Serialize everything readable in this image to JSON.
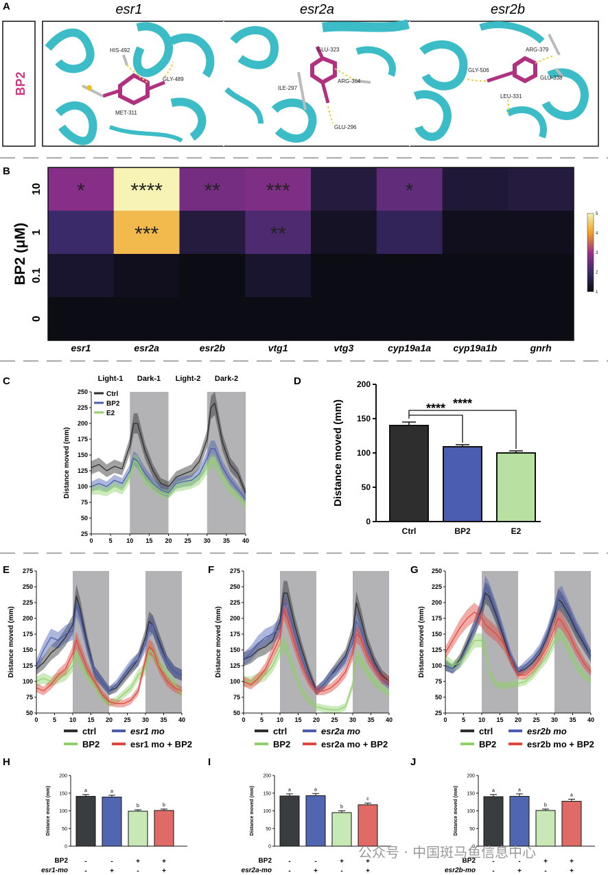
{
  "panels": {
    "A": {
      "letter": "A",
      "row_label": "BP2",
      "genes": [
        "esr1",
        "esr2a",
        "esr2b"
      ],
      "residues": [
        [
          "HIS-492",
          "GLY-489",
          "MET-311"
        ],
        [
          "GLU-323",
          "ILE-297",
          "ARG-364",
          "GLU-296"
        ],
        [
          "ARG-379",
          "GLY-506",
          "GLU-338",
          "LEU-331"
        ]
      ]
    },
    "B": {
      "letter": "B"
    },
    "C": {
      "letter": "C",
      "phases": [
        "Light-1",
        "Dark-1",
        "Light-2",
        "Dark-2"
      ],
      "legend": [
        "Ctrl",
        "BP2",
        "E2"
      ]
    },
    "D": {
      "letter": "D",
      "sig": [
        "****",
        "****"
      ]
    },
    "E": {
      "letter": "E",
      "legend": [
        "ctrl",
        "esr1 mo",
        "BP2",
        "esr1 mo + BP2"
      ]
    },
    "F": {
      "letter": "F",
      "legend": [
        "ctrl",
        "esr2a mo",
        "BP2",
        "esr2a mo + BP2"
      ]
    },
    "G": {
      "letter": "G",
      "legend": [
        "ctrl",
        "esr2b mo",
        "BP2",
        "esr2b mo + BP2"
      ]
    },
    "H": {
      "letter": "H",
      "row1": "BP2",
      "row2": "esr1-mo",
      "bp2_signs": [
        "-",
        "-",
        "+",
        "+"
      ],
      "mo_signs": [
        "-",
        "+",
        "-",
        "+"
      ],
      "letters": [
        "a",
        "a",
        "b",
        "b"
      ]
    },
    "I": {
      "letter": "I",
      "row1": "BP2",
      "row2": "esr2a-mo",
      "bp2_signs": [
        "-",
        "-",
        "+",
        "+"
      ],
      "mo_signs": [
        "-",
        "+",
        "-",
        "+"
      ],
      "letters": [
        "a",
        "a",
        "b",
        "c"
      ]
    },
    "J": {
      "letter": "J",
      "row1": "BP2",
      "row2": "esr2b-mo",
      "bp2_signs": [
        "-",
        "-",
        "+",
        "+"
      ],
      "mo_signs": [
        "-",
        "+",
        "-",
        "+"
      ],
      "letters": [
        "a",
        "a",
        "b",
        "a"
      ]
    }
  },
  "watermark": "公众号 · 中国斑马鱼信息中心",
  "colors": {
    "ctrl": "#2e2e2e",
    "bp2": "#4a5db0",
    "e2": "#8fd06a",
    "combo": "#e0473c",
    "magenta": "#d63384",
    "teal": "#3bbcc6",
    "dark_band": "#b3b3b6"
  },
  "chart_data": [
    {
      "id": "B",
      "type": "heatmap",
      "ylabel": "BP2 (μM)",
      "rows": [
        "10",
        "1",
        "0.1",
        "0"
      ],
      "columns": [
        "esr1",
        "esr2a",
        "esr2b",
        "vtg1",
        "vtg3",
        "cyp19a1a",
        "cyp19a1b",
        "gnrh"
      ],
      "values": [
        [
          2.8,
          5.0,
          2.6,
          2.7,
          1.5,
          2.4,
          1.4,
          1.5
        ],
        [
          2.0,
          4.3,
          1.5,
          2.2,
          1.2,
          1.8,
          1.1,
          1.1
        ],
        [
          1.3,
          1.1,
          1.0,
          1.3,
          1.0,
          1.0,
          1.0,
          1.0
        ],
        [
          1.0,
          1.0,
          1.0,
          1.0,
          1.0,
          1.0,
          1.0,
          1.0
        ]
      ],
      "significance": [
        [
          "*",
          "****",
          "**",
          "***",
          "",
          "*",
          "",
          ""
        ],
        [
          "",
          "***",
          "",
          "**",
          "",
          "",
          "",
          ""
        ],
        [
          "",
          "",
          "",
          "",
          "",
          "",
          "",
          ""
        ],
        [
          "",
          "",
          "",
          "",
          "",
          "",
          "",
          ""
        ]
      ],
      "colorbar_ticks": [
        "1",
        "2",
        "3",
        "4",
        "5"
      ],
      "range": [
        1,
        5
      ]
    },
    {
      "id": "C",
      "type": "line",
      "ylabel": "Distance moved (mm)",
      "xticks": [
        "0",
        "5",
        "10",
        "15",
        "20",
        "25",
        "30",
        "35",
        "40"
      ],
      "yticks": [
        "25",
        "50",
        "75",
        "100",
        "125",
        "150",
        "175",
        "200",
        "225",
        "250"
      ],
      "xlim": [
        0,
        40
      ],
      "ylim": [
        25,
        250
      ],
      "dark_periods": [
        [
          10,
          20
        ],
        [
          30,
          40
        ]
      ],
      "x": [
        0,
        2,
        4,
        6,
        8,
        10,
        11,
        12,
        14,
        16,
        18,
        20,
        22,
        24,
        26,
        28,
        30,
        31,
        32,
        34,
        36,
        38,
        40
      ],
      "series": [
        {
          "name": "Ctrl",
          "color": "#2e2e2e",
          "values": [
            130,
            135,
            125,
            132,
            128,
            165,
            200,
            200,
            155,
            125,
            105,
            100,
            115,
            120,
            125,
            140,
            175,
            225,
            232,
            170,
            135,
            120,
            90
          ]
        },
        {
          "name": "BP2",
          "color": "#4a5db0",
          "values": [
            100,
            105,
            100,
            110,
            105,
            125,
            145,
            140,
            120,
            105,
            95,
            90,
            105,
            108,
            110,
            120,
            145,
            160,
            160,
            130,
            110,
            95,
            80
          ]
        },
        {
          "name": "E2",
          "color": "#8fd06a",
          "values": [
            95,
            95,
            92,
            100,
            95,
            115,
            140,
            138,
            110,
            100,
            90,
            88,
            100,
            102,
            105,
            112,
            130,
            140,
            140,
            115,
            95,
            85,
            70
          ]
        }
      ]
    },
    {
      "id": "D",
      "type": "bar",
      "ylabel": "Distance moved (mm)",
      "categories": [
        "Ctrl",
        "BP2",
        "E2"
      ],
      "values": [
        140,
        109,
        100
      ],
      "errors": [
        5,
        3,
        3
      ],
      "colors": [
        "#2e2e2e",
        "#4a5db0",
        "#b8e0a0"
      ],
      "yticks": [
        "0",
        "50",
        "100",
        "150",
        "200"
      ],
      "ylim": [
        0,
        200
      ]
    },
    {
      "id": "E",
      "type": "line",
      "ylabel": "Distance moved (mm)",
      "xticks": [
        "0",
        "5",
        "10",
        "15",
        "20",
        "25",
        "30",
        "35",
        "40"
      ],
      "yticks": [
        "50",
        "75",
        "100",
        "125",
        "150",
        "175",
        "200",
        "225",
        "250",
        "275"
      ],
      "xlim": [
        0,
        40
      ],
      "ylim": [
        50,
        275
      ],
      "dark_periods": [
        [
          10,
          20
        ],
        [
          30,
          40
        ]
      ],
      "x": [
        0,
        2,
        4,
        6,
        8,
        10,
        11,
        12,
        14,
        16,
        18,
        20,
        22,
        24,
        26,
        28,
        30,
        31,
        32,
        34,
        36,
        38,
        40
      ],
      "series": [
        {
          "name": "ctrl",
          "color": "#2e2e2e",
          "values": [
            120,
            130,
            145,
            155,
            170,
            190,
            235,
            215,
            160,
            115,
            100,
            85,
            90,
            105,
            120,
            135,
            170,
            195,
            190,
            160,
            130,
            115,
            110
          ]
        },
        {
          "name": "esr1 mo",
          "color": "#4a5db0",
          "values": [
            125,
            150,
            170,
            165,
            175,
            180,
            220,
            205,
            155,
            115,
            100,
            85,
            95,
            110,
            125,
            135,
            160,
            185,
            190,
            155,
            130,
            115,
            110
          ]
        },
        {
          "name": "BP2",
          "color": "#8fd06a",
          "values": [
            100,
            105,
            100,
            105,
            110,
            125,
            145,
            130,
            110,
            95,
            75,
            65,
            70,
            80,
            90,
            110,
            120,
            150,
            145,
            125,
            110,
            95,
            80
          ]
        },
        {
          "name": "esr1 mo + BP2",
          "color": "#e0473c",
          "values": [
            90,
            85,
            95,
            110,
            120,
            145,
            165,
            150,
            120,
            100,
            80,
            68,
            65,
            65,
            70,
            85,
            135,
            155,
            150,
            120,
            100,
            90,
            85
          ]
        }
      ]
    },
    {
      "id": "F",
      "type": "line",
      "ylabel": "Distance moved (mm)",
      "xticks": [
        "0",
        "5",
        "10",
        "15",
        "20",
        "25",
        "30",
        "35",
        "40"
      ],
      "yticks": [
        "50",
        "75",
        "100",
        "125",
        "150",
        "175",
        "200",
        "225",
        "250",
        "275"
      ],
      "xlim": [
        0,
        40
      ],
      "ylim": [
        50,
        275
      ],
      "dark_periods": [
        [
          10,
          20
        ],
        [
          30,
          40
        ]
      ],
      "x": [
        0,
        2,
        4,
        6,
        8,
        10,
        11,
        12,
        14,
        16,
        18,
        20,
        22,
        24,
        26,
        28,
        30,
        31,
        32,
        34,
        36,
        38,
        40
      ],
      "series": [
        {
          "name": "ctrl",
          "color": "#2e2e2e",
          "values": [
            135,
            140,
            150,
            155,
            165,
            195,
            240,
            240,
            190,
            150,
            115,
            85,
            95,
            110,
            125,
            140,
            175,
            225,
            205,
            160,
            130,
            110,
            100
          ]
        },
        {
          "name": "esr2a mo",
          "color": "#4a5db0",
          "values": [
            135,
            145,
            160,
            170,
            175,
            185,
            225,
            215,
            175,
            135,
            105,
            85,
            95,
            110,
            120,
            135,
            160,
            195,
            185,
            150,
            125,
            105,
            95
          ]
        },
        {
          "name": "BP2",
          "color": "#8fd06a",
          "values": [
            100,
            100,
            105,
            110,
            125,
            150,
            160,
            150,
            115,
            85,
            70,
            60,
            57,
            55,
            55,
            60,
            95,
            140,
            135,
            115,
            100,
            90,
            80
          ]
        },
        {
          "name": "esr2a mo + BP2",
          "color": "#e0473c",
          "values": [
            100,
            95,
            105,
            120,
            145,
            170,
            215,
            200,
            160,
            125,
            100,
            85,
            85,
            90,
            100,
            115,
            145,
            175,
            170,
            140,
            120,
            105,
            100
          ]
        }
      ]
    },
    {
      "id": "G",
      "type": "line",
      "ylabel": "Distance moved (mm)",
      "xticks": [
        "0",
        "5",
        "10",
        "15",
        "20",
        "25",
        "30",
        "35",
        "40"
      ],
      "yticks": [
        "25",
        "50",
        "75",
        "100",
        "125",
        "150",
        "175",
        "200",
        "225",
        "250"
      ],
      "xlim": [
        0,
        40
      ],
      "ylim": [
        25,
        250
      ],
      "dark_periods": [
        [
          10,
          20
        ],
        [
          30,
          40
        ]
      ],
      "x": [
        0,
        2,
        4,
        6,
        8,
        10,
        11,
        12,
        14,
        16,
        18,
        20,
        22,
        24,
        26,
        28,
        30,
        31,
        32,
        34,
        36,
        38,
        40
      ],
      "series": [
        {
          "name": "ctrl",
          "color": "#2e2e2e",
          "values": [
            100,
            95,
            110,
            135,
            160,
            190,
            215,
            210,
            180,
            145,
            110,
            90,
            95,
            105,
            120,
            145,
            180,
            205,
            200,
            180,
            155,
            135,
            115
          ]
        },
        {
          "name": "esr2b mo",
          "color": "#4a5db0",
          "values": [
            100,
            95,
            105,
            130,
            160,
            195,
            225,
            215,
            185,
            150,
            115,
            90,
            100,
            110,
            125,
            150,
            185,
            205,
            210,
            185,
            160,
            140,
            115
          ]
        },
        {
          "name": "BP2",
          "color": "#8fd06a",
          "values": [
            110,
            100,
            105,
            120,
            140,
            140,
            125,
            90,
            70,
            68,
            70,
            72,
            75,
            85,
            100,
            115,
            140,
            150,
            150,
            125,
            100,
            85,
            75
          ]
        },
        {
          "name": "esr2b mo + BP2",
          "color": "#e0473c",
          "values": [
            120,
            140,
            160,
            175,
            185,
            175,
            165,
            160,
            150,
            135,
            110,
            85,
            85,
            95,
            110,
            130,
            160,
            175,
            170,
            150,
            125,
            105,
            90
          ]
        }
      ]
    },
    {
      "id": "H",
      "type": "bar",
      "ylabel": "Distance moved (mm)",
      "values": [
        141,
        139,
        99,
        101
      ],
      "errors": [
        5,
        5,
        4,
        4
      ],
      "colors": [
        "#3a3d3f",
        "#5166b0",
        "#c8e8b6",
        "#e06a66"
      ],
      "yticks": [
        "0",
        "50",
        "100",
        "150",
        "200"
      ],
      "ylim": [
        0,
        200
      ]
    },
    {
      "id": "I",
      "type": "bar",
      "ylabel": "Distance moved (mm)",
      "values": [
        142,
        143,
        95,
        117
      ],
      "errors": [
        6,
        6,
        5,
        5
      ],
      "colors": [
        "#3a3d3f",
        "#5166b0",
        "#c8e8b6",
        "#e06a66"
      ],
      "yticks": [
        "0",
        "50",
        "100",
        "150",
        "200"
      ],
      "ylim": [
        0,
        200
      ]
    },
    {
      "id": "J",
      "type": "bar",
      "ylabel": "Distance moved (mm)",
      "values": [
        140,
        141,
        101,
        127
      ],
      "errors": [
        6,
        7,
        4,
        6
      ],
      "colors": [
        "#3a3d3f",
        "#5166b0",
        "#c8e8b6",
        "#e06a66"
      ],
      "yticks": [
        "0",
        "50",
        "100",
        "150",
        "200"
      ],
      "ylim": [
        0,
        200
      ]
    }
  ]
}
